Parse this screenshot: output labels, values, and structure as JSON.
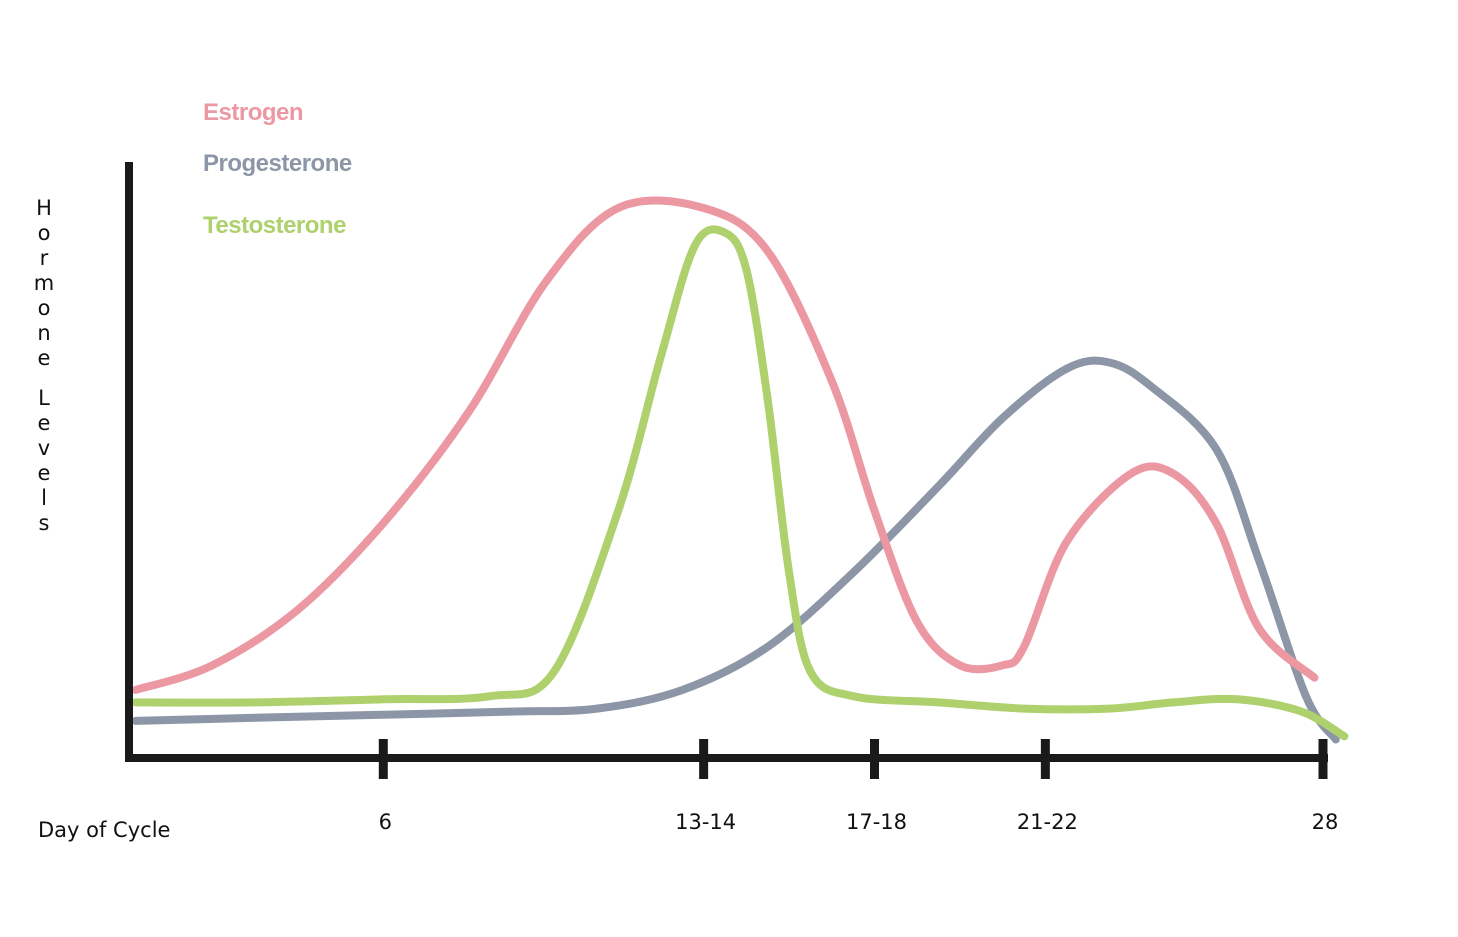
{
  "chart_data": {
    "type": "line",
    "title": "",
    "xlabel": "Day of Cycle",
    "ylabel": "Hormone Levels",
    "grid": false,
    "legend_position": "top-left",
    "xlim": [
      0,
      28
    ],
    "ylim": [
      0,
      100
    ],
    "x_ticks": [
      {
        "value": 6,
        "label": "6"
      },
      {
        "value": 13.5,
        "label": "13-14"
      },
      {
        "value": 17.5,
        "label": "17-18"
      },
      {
        "value": 21.5,
        "label": "21-22"
      },
      {
        "value": 28,
        "label": "28"
      }
    ],
    "series": [
      {
        "name": "Estrogen",
        "color": "#ec98a3",
        "points": [
          [
            0.2,
            11
          ],
          [
            2,
            15
          ],
          [
            4,
            24
          ],
          [
            6,
            38
          ],
          [
            8,
            56
          ],
          [
            9.8,
            77
          ],
          [
            11.5,
            89
          ],
          [
            13.5,
            89
          ],
          [
            15,
            82
          ],
          [
            16.5,
            61
          ],
          [
            17.5,
            40
          ],
          [
            18.5,
            22
          ],
          [
            19.5,
            15
          ],
          [
            20.5,
            15
          ],
          [
            21,
            18
          ],
          [
            22,
            35
          ],
          [
            23.5,
            46
          ],
          [
            24.5,
            46
          ],
          [
            25.5,
            38
          ],
          [
            26.5,
            21
          ],
          [
            27.8,
            13
          ]
        ]
      },
      {
        "name": "Progesterone",
        "color": "#8c96a6",
        "points": [
          [
            0.2,
            6
          ],
          [
            3,
            6.5
          ],
          [
            6,
            7
          ],
          [
            9,
            7.5
          ],
          [
            11,
            8
          ],
          [
            13,
            11
          ],
          [
            15,
            18
          ],
          [
            17,
            30
          ],
          [
            19,
            44
          ],
          [
            20.5,
            55
          ],
          [
            22,
            63
          ],
          [
            23,
            64
          ],
          [
            24,
            60
          ],
          [
            25.5,
            50
          ],
          [
            26.5,
            32
          ],
          [
            27.6,
            10
          ],
          [
            28.3,
            3
          ]
        ]
      },
      {
        "name": "Testosterone",
        "color": "#aed06d",
        "points": [
          [
            0.2,
            9
          ],
          [
            3,
            9
          ],
          [
            6,
            9.5
          ],
          [
            8.5,
            10
          ],
          [
            10,
            14
          ],
          [
            11.5,
            40
          ],
          [
            12.5,
            65
          ],
          [
            13.3,
            83
          ],
          [
            14,
            85
          ],
          [
            14.5,
            79
          ],
          [
            15,
            58
          ],
          [
            15.5,
            30
          ],
          [
            16,
            14
          ],
          [
            17,
            10
          ],
          [
            19,
            9
          ],
          [
            21,
            8
          ],
          [
            23,
            8
          ],
          [
            24.5,
            9
          ],
          [
            26,
            9.5
          ],
          [
            27.5,
            7.5
          ],
          [
            28.5,
            3.5
          ]
        ]
      }
    ]
  }
}
